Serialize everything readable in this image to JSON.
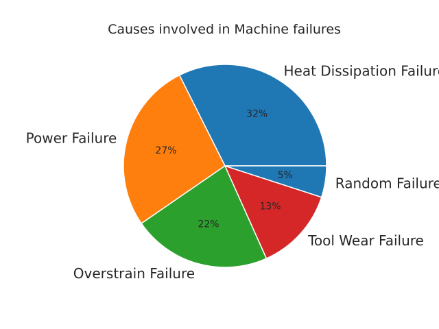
{
  "chart_data": {
    "type": "pie",
    "title": "Causes involved in Machine failures",
    "categories": [
      "Heat Dissipation Failure",
      "Power Failure",
      "Overstrain Failure",
      "Tool Wear Failure",
      "Random Failures"
    ],
    "values": [
      32.4,
      27.2,
      22.1,
      13.3,
      5.0
    ],
    "percent_labels": [
      "32%",
      "27%",
      "22%",
      "13%",
      "5%"
    ],
    "colors": [
      "#1f77b4",
      "#ff7f0e",
      "#2ca02c",
      "#d62728",
      "#1f77b4"
    ],
    "start_angle_deg": 0,
    "direction": "counterclockwise"
  }
}
